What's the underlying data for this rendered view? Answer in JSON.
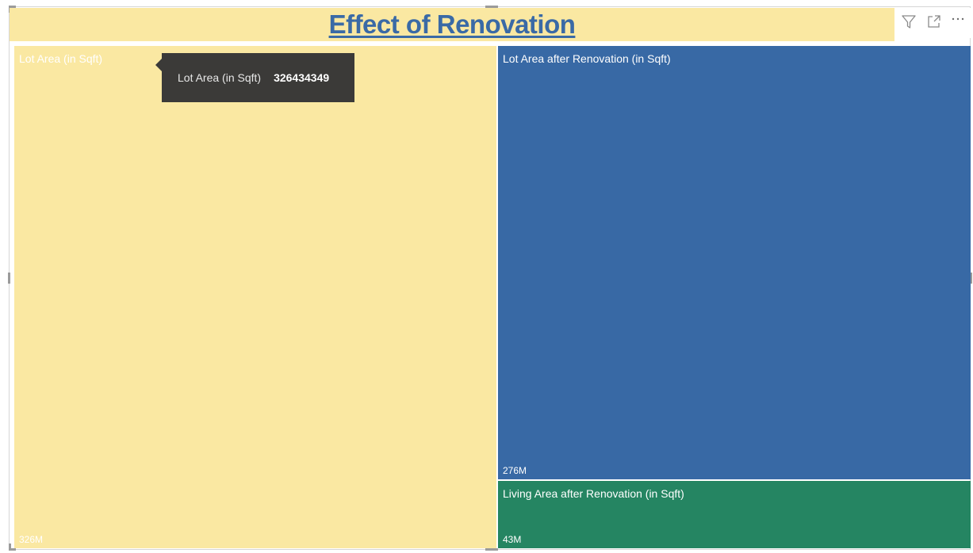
{
  "title": "Effect of Renovation",
  "header_icons": [
    "filter-icon",
    "focus-mode-icon",
    "more-options-icon"
  ],
  "chart_data": {
    "type": "treemap",
    "title": "Effect of Renovation",
    "nodes": [
      {
        "name": "Lot Area (in Sqft)",
        "value": 326434349,
        "value_label": "326M",
        "color": "#fae8a2"
      },
      {
        "name": "Lot Area after Renovation (in Sqft)",
        "value": 276000000,
        "value_label": "276M",
        "color": "#3869a5"
      },
      {
        "name": "Living Area after Renovation (in Sqft)",
        "value": 43000000,
        "value_label": "43M",
        "color": "#258562"
      }
    ]
  },
  "tooltip": {
    "label": "Lot Area (in Sqft)",
    "value": "326434349"
  }
}
